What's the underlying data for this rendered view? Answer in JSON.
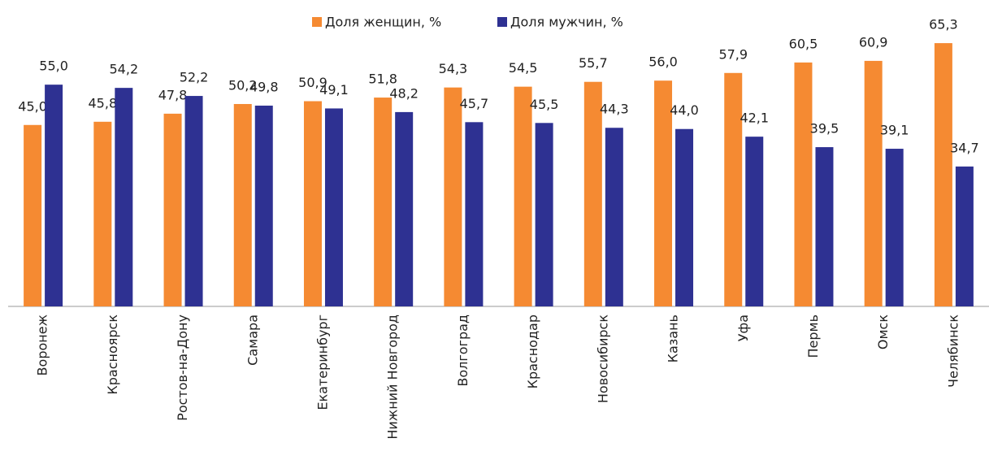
{
  "chart_data": {
    "type": "bar",
    "categories": [
      "Воронеж",
      "Красноярск",
      "Ростов-на-Дону",
      "Самара",
      "Екатеринбург",
      "Нижний Новгород",
      "Волгоград",
      "Краснодар",
      "Новосибирск",
      "Казань",
      "Уфа",
      "Пермь",
      "Омск",
      "Челябинск"
    ],
    "series": [
      {
        "name": "Доля женщин, %",
        "color": "#f58a32",
        "values": [
          45.0,
          45.8,
          47.8,
          50.2,
          50.9,
          51.8,
          54.3,
          54.5,
          55.7,
          56.0,
          57.9,
          60.5,
          60.9,
          65.3
        ],
        "value_labels": [
          "45,0",
          "45,8",
          "47,8",
          "50,2",
          "50,9",
          "51,8",
          "54,3",
          "54,5",
          "55,7",
          "56,0",
          "57,9",
          "60,5",
          "60,9",
          "65,3"
        ]
      },
      {
        "name": "Доля мужчин, %",
        "color": "#2e3192",
        "values": [
          55.0,
          54.2,
          52.2,
          49.8,
          49.1,
          48.2,
          45.7,
          45.5,
          44.3,
          44.0,
          42.1,
          39.5,
          39.1,
          34.7
        ],
        "value_labels": [
          "55,0",
          "54,2",
          "52,2",
          "49,8",
          "49,1",
          "48,2",
          "45,7",
          "45,5",
          "44,3",
          "44,0",
          "42,1",
          "39,5",
          "39,1",
          "34,7"
        ]
      }
    ],
    "ylim": [
      0,
      76
    ],
    "legend": "top"
  }
}
